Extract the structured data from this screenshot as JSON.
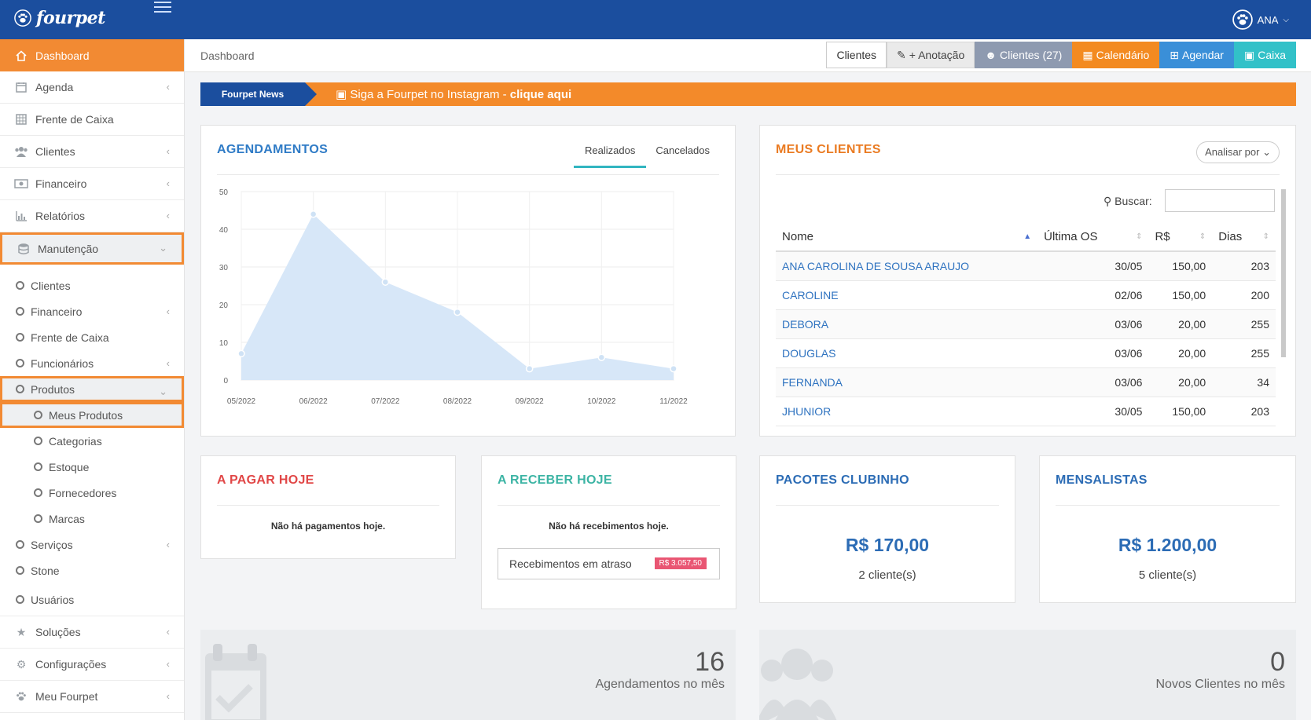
{
  "app": {
    "logo_text": "fourpet",
    "user_name": "ANA"
  },
  "sidebar": {
    "items": [
      {
        "label": "Dashboard",
        "icon": "home-icon",
        "active": true
      },
      {
        "label": "Agenda",
        "icon": "calendar-icon"
      },
      {
        "label": "Frente de Caixa",
        "icon": "cash-register-icon"
      },
      {
        "label": "Clientes",
        "icon": "users-icon"
      },
      {
        "label": "Financeiro",
        "icon": "money-icon"
      },
      {
        "label": "Relatórios",
        "icon": "bar-chart-icon"
      },
      {
        "label": "Manutenção",
        "icon": "database-icon"
      }
    ],
    "manutencao_sub": [
      {
        "label": "Clientes"
      },
      {
        "label": "Financeiro"
      },
      {
        "label": "Frente de Caixa"
      },
      {
        "label": "Funcionários"
      },
      {
        "label": "Produtos"
      }
    ],
    "produtos_sub": [
      {
        "label": "Meus Produtos"
      },
      {
        "label": "Categorias"
      },
      {
        "label": "Estoque"
      },
      {
        "label": "Fornecedores"
      },
      {
        "label": "Marcas"
      }
    ],
    "manutencao_tail": [
      {
        "label": "Serviços"
      },
      {
        "label": "Stone"
      },
      {
        "label": "Usuários"
      }
    ],
    "bottom": [
      {
        "label": "Soluções",
        "icon": "star-icon"
      },
      {
        "label": "Configurações",
        "icon": "cogs-icon"
      },
      {
        "label": "Meu Fourpet",
        "icon": "paw-icon"
      }
    ]
  },
  "header": {
    "breadcrumb": "Dashboard",
    "buttons": {
      "clientes": "Clientes",
      "anotacao": "+ Anotação",
      "clientes_count": "Clientes (27)",
      "calendario": "Calendário",
      "agendar": "Agendar",
      "caixa": "Caixa"
    }
  },
  "news": {
    "tag": "Fourpet News",
    "text": "Siga a Fourpet no Instagram - ",
    "link": "clique aqui"
  },
  "agendamentos": {
    "title": "AGENDAMENTOS",
    "tab_done": "Realizados",
    "tab_cancel": "Cancelados"
  },
  "chart_data": {
    "type": "area",
    "x": [
      "05/2022",
      "06/2022",
      "07/2022",
      "08/2022",
      "09/2022",
      "10/2022",
      "11/2022"
    ],
    "series": [
      {
        "values": [
          7,
          44,
          26,
          18,
          3,
          6,
          3
        ]
      }
    ],
    "yticks": [
      0,
      10,
      20,
      30,
      40,
      50
    ],
    "ylim": [
      0,
      50
    ],
    "grid": true,
    "fill_color": "#d7e7f8",
    "point_color": "#cfe2f5"
  },
  "clientes_panel": {
    "title": "MEUS CLIENTES",
    "analisar": "Analisar por",
    "buscar": "Buscar:",
    "columns": [
      "Nome",
      "Última OS",
      "R$",
      "Dias"
    ],
    "rows": [
      {
        "nome": "ANA CAROLINA DE SOUSA ARAUJO",
        "os": "30/05",
        "valor": "150,00",
        "dias": "203"
      },
      {
        "nome": "CAROLINE",
        "os": "02/06",
        "valor": "150,00",
        "dias": "200"
      },
      {
        "nome": "DEBORA",
        "os": "03/06",
        "valor": "20,00",
        "dias": "255"
      },
      {
        "nome": "DOUGLAS",
        "os": "03/06",
        "valor": "20,00",
        "dias": "255"
      },
      {
        "nome": "FERNANDA",
        "os": "03/06",
        "valor": "20,00",
        "dias": "34"
      },
      {
        "nome": "JHUNIOR",
        "os": "30/05",
        "valor": "150,00",
        "dias": "203"
      }
    ]
  },
  "pagar": {
    "title": "A PAGAR HOJE",
    "empty": "Não há pagamentos hoje."
  },
  "receber": {
    "title": "A RECEBER HOJE",
    "empty": "Não há recebimentos hoje.",
    "atraso_label": "Recebimentos em atraso",
    "atraso_value": "R$ 3.057,50"
  },
  "pacotes": {
    "title": "PACOTES CLUBINHO",
    "value": "R$ 170,00",
    "clients": "2 cliente(s)"
  },
  "mensalistas": {
    "title": "MENSALISTAS",
    "value": "R$ 1.200,00",
    "clients": "5 cliente(s)"
  },
  "stats": {
    "agend_mes_value": "16",
    "agend_mes_label": "Agendamentos no mês",
    "novos_value": "0",
    "novos_label": "Novos Clientes no mês"
  }
}
